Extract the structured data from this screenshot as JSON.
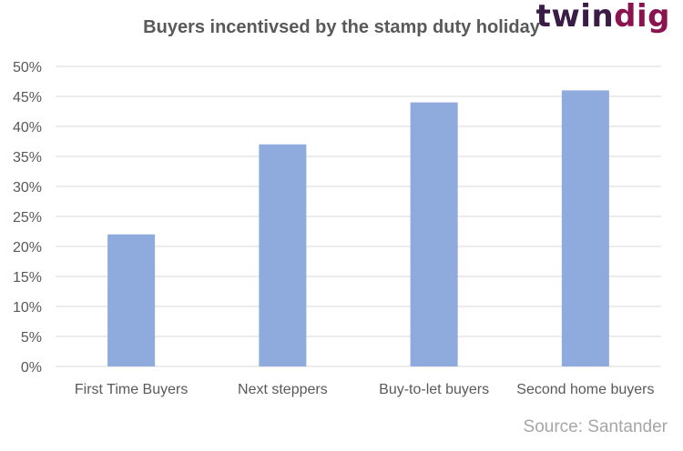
{
  "brand": {
    "logo_part1": "twin",
    "logo_part2": "dig"
  },
  "source_note": "Source: Santander",
  "colors": {
    "bar": "#8faadc",
    "grid": "#d9d9d9",
    "text": "#595959",
    "source": "#a6a6a6",
    "logo_dark": "#3a1d46",
    "logo_accent": "#8a1450"
  },
  "chart_data": {
    "type": "bar",
    "title": "Buyers incentivsed by the stamp duty holiday",
    "categories": [
      "First Time Buyers",
      "Next steppers",
      "Buy-to-let buyers",
      "Second home buyers"
    ],
    "values": [
      22,
      37,
      44,
      46
    ],
    "ylim": [
      0,
      50
    ],
    "yticks": [
      0,
      5,
      10,
      15,
      20,
      25,
      30,
      35,
      40,
      45,
      50
    ],
    "ytick_labels": [
      "0%",
      "5%",
      "10%",
      "15%",
      "20%",
      "25%",
      "30%",
      "35%",
      "40%",
      "45%",
      "50%"
    ],
    "xlabel": "",
    "ylabel": "",
    "grid": true,
    "legend": false
  }
}
